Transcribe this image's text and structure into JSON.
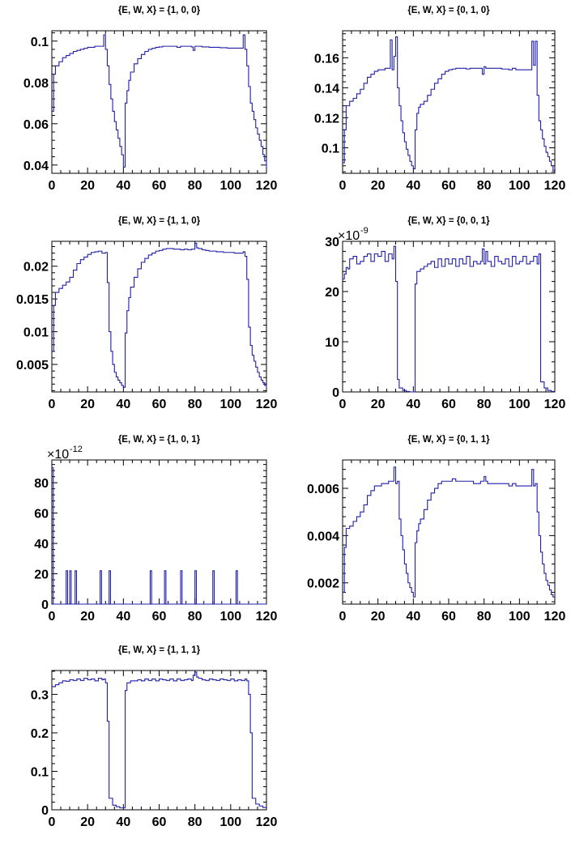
{
  "figure": {
    "line_color": "#1f1fa8",
    "axis_color": "#000000",
    "background": "#ffffff"
  },
  "chart_data": [
    {
      "type": "line",
      "title": "{E, W, X} = {1, 0, 0}",
      "xlim": [
        0,
        120
      ],
      "ylim": [
        0.036,
        0.105
      ],
      "x_ticks": [
        "0",
        "20",
        "40",
        "60",
        "80",
        "100",
        "120"
      ],
      "x_tick_values": [
        0,
        20,
        40,
        60,
        80,
        100,
        120
      ],
      "y_ticks": [
        "0.04",
        "0.06",
        "0.08",
        "0.1"
      ],
      "y_tick_values": [
        0.04,
        0.06,
        0.08,
        0.1
      ],
      "y_exponent": "",
      "x": [
        0,
        1,
        2,
        4,
        6,
        8,
        10,
        12,
        14,
        16,
        18,
        20,
        22,
        24,
        26,
        28,
        29,
        30,
        31,
        32,
        33,
        34,
        35,
        36,
        37,
        38,
        39,
        40,
        41,
        42,
        43,
        44,
        46,
        48,
        50,
        52,
        54,
        56,
        58,
        60,
        62,
        64,
        66,
        68,
        70,
        72,
        74,
        76,
        78,
        79,
        80,
        81,
        82,
        84,
        86,
        88,
        90,
        92,
        94,
        96,
        98,
        100,
        102,
        104,
        106,
        107,
        108,
        109,
        110,
        111,
        112,
        113,
        114,
        115,
        116,
        117,
        118,
        119,
        120
      ],
      "y": [
        0.066,
        0.084,
        0.088,
        0.09,
        0.092,
        0.093,
        0.094,
        0.095,
        0.0955,
        0.096,
        0.0965,
        0.097,
        0.097,
        0.0975,
        0.0975,
        0.0975,
        0.103,
        0.096,
        0.088,
        0.079,
        0.072,
        0.066,
        0.061,
        0.057,
        0.053,
        0.049,
        0.045,
        0.039,
        0.07,
        0.076,
        0.081,
        0.085,
        0.089,
        0.0915,
        0.0935,
        0.095,
        0.096,
        0.0965,
        0.097,
        0.0972,
        0.0975,
        0.0975,
        0.0975,
        0.0975,
        0.097,
        0.0975,
        0.0975,
        0.0975,
        0.0972,
        0.0955,
        0.0975,
        0.0975,
        0.0975,
        0.0972,
        0.0972,
        0.097,
        0.097,
        0.097,
        0.0968,
        0.0968,
        0.0966,
        0.0966,
        0.0966,
        0.0966,
        0.0966,
        0.103,
        0.096,
        0.088,
        0.078,
        0.07,
        0.066,
        0.062,
        0.058,
        0.055,
        0.052,
        0.049,
        0.045,
        0.042,
        0.039
      ]
    },
    {
      "type": "line",
      "title": "{E, W, X} = {0, 1, 0}",
      "xlim": [
        0,
        120
      ],
      "ylim": [
        0.083,
        0.178
      ],
      "x_ticks": [
        "0",
        "20",
        "40",
        "60",
        "80",
        "100",
        "120"
      ],
      "x_tick_values": [
        0,
        20,
        40,
        60,
        80,
        100,
        120
      ],
      "y_ticks": [
        "0.1",
        "0.12",
        "0.14",
        "0.16"
      ],
      "y_tick_values": [
        0.1,
        0.12,
        0.14,
        0.16
      ],
      "y_exponent": "",
      "x": [
        0,
        1,
        2,
        4,
        6,
        8,
        10,
        12,
        14,
        16,
        18,
        20,
        22,
        24,
        26,
        27,
        28,
        29,
        30,
        31,
        32,
        33,
        34,
        35,
        36,
        37,
        38,
        39,
        40,
        41,
        42,
        43,
        44,
        46,
        48,
        50,
        52,
        54,
        56,
        58,
        60,
        62,
        64,
        66,
        68,
        70,
        72,
        74,
        76,
        78,
        79,
        80,
        81,
        82,
        84,
        86,
        88,
        90,
        92,
        94,
        96,
        98,
        100,
        102,
        104,
        106,
        107,
        108,
        109,
        110,
        111,
        112,
        113,
        114,
        115,
        116,
        117,
        118,
        119,
        120
      ],
      "y": [
        0.09,
        0.112,
        0.128,
        0.131,
        0.133,
        0.136,
        0.139,
        0.143,
        0.147,
        0.149,
        0.151,
        0.152,
        0.152,
        0.153,
        0.153,
        0.172,
        0.152,
        0.161,
        0.174,
        0.14,
        0.128,
        0.118,
        0.11,
        0.104,
        0.099,
        0.095,
        0.091,
        0.088,
        0.086,
        0.112,
        0.123,
        0.127,
        0.129,
        0.131,
        0.135,
        0.139,
        0.143,
        0.146,
        0.149,
        0.151,
        0.152,
        0.1525,
        0.153,
        0.153,
        0.153,
        0.1525,
        0.153,
        0.153,
        0.153,
        0.153,
        0.149,
        0.154,
        0.153,
        0.153,
        0.153,
        0.153,
        0.153,
        0.1525,
        0.1525,
        0.152,
        0.153,
        0.152,
        0.152,
        0.152,
        0.152,
        0.152,
        0.171,
        0.155,
        0.171,
        0.135,
        0.118,
        0.112,
        0.106,
        0.101,
        0.097,
        0.094,
        0.091,
        0.088,
        0.085,
        0.085
      ]
    },
    {
      "type": "line",
      "title": "{E, W, X} = {1, 1, 0}",
      "xlim": [
        0,
        120
      ],
      "ylim": [
        0.0008,
        0.0238
      ],
      "x_ticks": [
        "0",
        "20",
        "40",
        "60",
        "80",
        "100",
        "120"
      ],
      "x_tick_values": [
        0,
        20,
        40,
        60,
        80,
        100,
        120
      ],
      "y_ticks": [
        "0.005",
        "0.01",
        "0.015",
        "0.02"
      ],
      "y_tick_values": [
        0.005,
        0.01,
        0.015,
        0.02
      ],
      "y_exponent": "",
      "x": [
        0,
        1,
        2,
        4,
        6,
        8,
        10,
        12,
        14,
        16,
        18,
        20,
        22,
        24,
        26,
        28,
        30,
        31,
        32,
        33,
        34,
        35,
        36,
        37,
        38,
        39,
        40,
        41,
        42,
        43,
        44,
        46,
        48,
        50,
        52,
        54,
        56,
        58,
        60,
        62,
        64,
        66,
        68,
        70,
        72,
        74,
        76,
        78,
        79,
        80,
        81,
        82,
        84,
        86,
        88,
        90,
        92,
        94,
        96,
        98,
        100,
        102,
        104,
        106,
        107,
        108,
        109,
        110,
        111,
        112,
        113,
        114,
        115,
        116,
        117,
        118,
        119,
        120
      ],
      "y": [
        0.007,
        0.014,
        0.016,
        0.0166,
        0.0171,
        0.0176,
        0.0183,
        0.0194,
        0.0204,
        0.021,
        0.0214,
        0.0218,
        0.0221,
        0.0222,
        0.0223,
        0.022,
        0.0221,
        0.0175,
        0.01,
        0.007,
        0.005,
        0.0038,
        0.0031,
        0.0026,
        0.0022,
        0.0018,
        0.0015,
        0.0098,
        0.0132,
        0.0152,
        0.0168,
        0.0183,
        0.0196,
        0.0206,
        0.0212,
        0.0217,
        0.022,
        0.0223,
        0.0224,
        0.0226,
        0.0227,
        0.0227,
        0.0226,
        0.0226,
        0.0225,
        0.0226,
        0.0225,
        0.0226,
        0.0226,
        0.0235,
        0.0228,
        0.0227,
        0.0225,
        0.0224,
        0.0223,
        0.0223,
        0.0222,
        0.0222,
        0.0221,
        0.0221,
        0.0221,
        0.022,
        0.022,
        0.022,
        0.0222,
        0.0215,
        0.018,
        0.0107,
        0.0079,
        0.0064,
        0.0055,
        0.0046,
        0.0038,
        0.0031,
        0.0026,
        0.0022,
        0.0018,
        0.0015
      ]
    },
    {
      "type": "line",
      "title": "{E, W, X} = {0, 0, 1}",
      "xlim": [
        0,
        120
      ],
      "ylim": [
        0,
        30
      ],
      "x_ticks": [
        "0",
        "20",
        "40",
        "60",
        "80",
        "100",
        "120"
      ],
      "x_tick_values": [
        0,
        20,
        40,
        60,
        80,
        100,
        120
      ],
      "y_ticks": [
        "0",
        "10",
        "20",
        "30"
      ],
      "y_tick_values": [
        0,
        10,
        20,
        30
      ],
      "y_exponent": "-9",
      "x": [
        0,
        1,
        2,
        3,
        4,
        6,
        8,
        10,
        12,
        14,
        16,
        18,
        20,
        22,
        24,
        26,
        28,
        29,
        30,
        31,
        32,
        34,
        36,
        38,
        40,
        41,
        42,
        44,
        46,
        48,
        50,
        52,
        54,
        56,
        58,
        60,
        62,
        64,
        66,
        68,
        70,
        72,
        74,
        76,
        78,
        79,
        80,
        81,
        82,
        84,
        86,
        88,
        90,
        92,
        94,
        96,
        98,
        100,
        102,
        104,
        106,
        108,
        110,
        111,
        112,
        114,
        116,
        118,
        120
      ],
      "y": [
        22.5,
        23.5,
        24.8,
        24.5,
        26.5,
        27,
        25.5,
        26,
        27,
        27.5,
        26,
        27.5,
        27,
        28,
        26,
        27.5,
        26.5,
        29,
        22,
        2.5,
        0.8,
        0.3,
        0.1,
        0,
        0,
        21.5,
        24,
        24.5,
        25,
        25.5,
        26,
        24.8,
        26.5,
        25,
        26.5,
        25.5,
        26.5,
        25,
        26.5,
        25.5,
        27,
        25,
        26,
        25.5,
        26,
        28.5,
        25.5,
        28,
        26,
        25,
        27,
        26,
        25.5,
        26.5,
        25,
        27,
        25.5,
        26,
        27,
        25.5,
        26,
        27,
        25.5,
        27.5,
        2,
        0.8,
        0.3,
        0.1,
        0.1
      ]
    },
    {
      "type": "line",
      "title": "{E, W, X} = {1, 0, 1}",
      "xlim": [
        0,
        120
      ],
      "ylim": [
        0,
        95
      ],
      "x_ticks": [
        "0",
        "20",
        "40",
        "60",
        "80",
        "100",
        "120"
      ],
      "x_tick_values": [
        0,
        20,
        40,
        60,
        80,
        100,
        120
      ],
      "y_ticks": [
        "0",
        "20",
        "40",
        "60",
        "80"
      ],
      "y_tick_values": [
        0,
        20,
        40,
        60,
        80
      ],
      "y_exponent": "-12",
      "x": [
        0,
        0.8,
        8,
        8.8,
        10,
        10.8,
        13,
        13.8,
        27,
        27.8,
        32,
        32.8,
        55,
        55.8,
        63,
        63.8,
        72,
        72.8,
        80,
        80.8,
        90,
        90.8,
        103,
        103.8,
        120
      ],
      "y": [
        90,
        0,
        22,
        0,
        22,
        0,
        22,
        0,
        22,
        0,
        22,
        0,
        22,
        0,
        22,
        0,
        22,
        0,
        22,
        0,
        22,
        0,
        22,
        0,
        0
      ]
    },
    {
      "type": "line",
      "title": "{E, W, X} = {0, 1, 1}",
      "xlim": [
        0,
        120
      ],
      "ylim": [
        0.0011,
        0.0072
      ],
      "x_ticks": [
        "0",
        "20",
        "40",
        "60",
        "80",
        "100",
        "120"
      ],
      "x_tick_values": [
        0,
        20,
        40,
        60,
        80,
        100,
        120
      ],
      "y_ticks": [
        "0.002",
        "0.004",
        "0.006"
      ],
      "y_tick_values": [
        0.002,
        0.004,
        0.006
      ],
      "y_exponent": "",
      "x": [
        0,
        1,
        2,
        4,
        6,
        8,
        10,
        12,
        14,
        16,
        18,
        20,
        22,
        24,
        26,
        28,
        29,
        30,
        31,
        32,
        33,
        34,
        35,
        36,
        37,
        38,
        39,
        40,
        41,
        42,
        43,
        44,
        46,
        48,
        50,
        52,
        54,
        56,
        58,
        60,
        62,
        64,
        66,
        68,
        70,
        72,
        74,
        76,
        78,
        80,
        81,
        82,
        84,
        86,
        88,
        90,
        92,
        94,
        96,
        98,
        100,
        102,
        104,
        106,
        107,
        108,
        109,
        110,
        111,
        112,
        113,
        114,
        115,
        116,
        117,
        118,
        119,
        120
      ],
      "y": [
        0.0016,
        0.0035,
        0.0043,
        0.0044,
        0.0046,
        0.0048,
        0.005,
        0.0053,
        0.0057,
        0.0059,
        0.0061,
        0.0061,
        0.0062,
        0.0062,
        0.0063,
        0.0063,
        0.0069,
        0.0062,
        0.0063,
        0.0047,
        0.004,
        0.0034,
        0.0028,
        0.0024,
        0.002,
        0.0018,
        0.0016,
        0.0014,
        0.0037,
        0.0042,
        0.0045,
        0.0047,
        0.0051,
        0.0055,
        0.0058,
        0.006,
        0.0062,
        0.0063,
        0.0063,
        0.0063,
        0.0064,
        0.0063,
        0.0063,
        0.0063,
        0.0063,
        0.0063,
        0.0062,
        0.0062,
        0.0063,
        0.0065,
        0.0063,
        0.0062,
        0.0062,
        0.0062,
        0.0062,
        0.0062,
        0.0062,
        0.0061,
        0.0062,
        0.0061,
        0.0061,
        0.0061,
        0.0061,
        0.0061,
        0.0068,
        0.0061,
        0.0062,
        0.005,
        0.004,
        0.0033,
        0.0028,
        0.0024,
        0.0021,
        0.0019,
        0.0017,
        0.0015,
        0.0014,
        0.0014
      ]
    },
    {
      "type": "line",
      "title": "{E, W, X} = {1, 1, 1}",
      "xlim": [
        0,
        120
      ],
      "ylim": [
        0,
        0.362
      ],
      "x_ticks": [
        "0",
        "20",
        "40",
        "60",
        "80",
        "100",
        "120"
      ],
      "x_tick_values": [
        0,
        20,
        40,
        60,
        80,
        100,
        120
      ],
      "y_ticks": [
        "0",
        "0.1",
        "0.2",
        "0.3"
      ],
      "y_tick_values": [
        0,
        0.1,
        0.2,
        0.3
      ],
      "y_exponent": "",
      "x": [
        0,
        2,
        4,
        6,
        8,
        10,
        12,
        14,
        16,
        18,
        20,
        22,
        24,
        26,
        28,
        29,
        30,
        31,
        32,
        34,
        36,
        38,
        40,
        41,
        42,
        44,
        46,
        48,
        50,
        52,
        54,
        56,
        58,
        60,
        62,
        64,
        66,
        68,
        70,
        72,
        74,
        76,
        78,
        79,
        80,
        81,
        82,
        84,
        86,
        88,
        90,
        92,
        94,
        96,
        98,
        100,
        102,
        104,
        106,
        108,
        109,
        110,
        111,
        112,
        114,
        116,
        118,
        120
      ],
      "y": [
        0.32,
        0.325,
        0.33,
        0.335,
        0.334,
        0.338,
        0.336,
        0.34,
        0.336,
        0.342,
        0.338,
        0.34,
        0.335,
        0.342,
        0.338,
        0.34,
        0.33,
        0.23,
        0.03,
        0.012,
        0.008,
        0.005,
        0.005,
        0.31,
        0.33,
        0.335,
        0.335,
        0.338,
        0.335,
        0.34,
        0.336,
        0.34,
        0.335,
        0.34,
        0.338,
        0.336,
        0.34,
        0.335,
        0.34,
        0.336,
        0.338,
        0.34,
        0.336,
        0.35,
        0.358,
        0.345,
        0.342,
        0.338,
        0.336,
        0.34,
        0.338,
        0.336,
        0.34,
        0.338,
        0.336,
        0.34,
        0.335,
        0.338,
        0.336,
        0.34,
        0.335,
        0.3,
        0.2,
        0.03,
        0.015,
        0.01,
        0.006,
        0.005
      ]
    }
  ]
}
